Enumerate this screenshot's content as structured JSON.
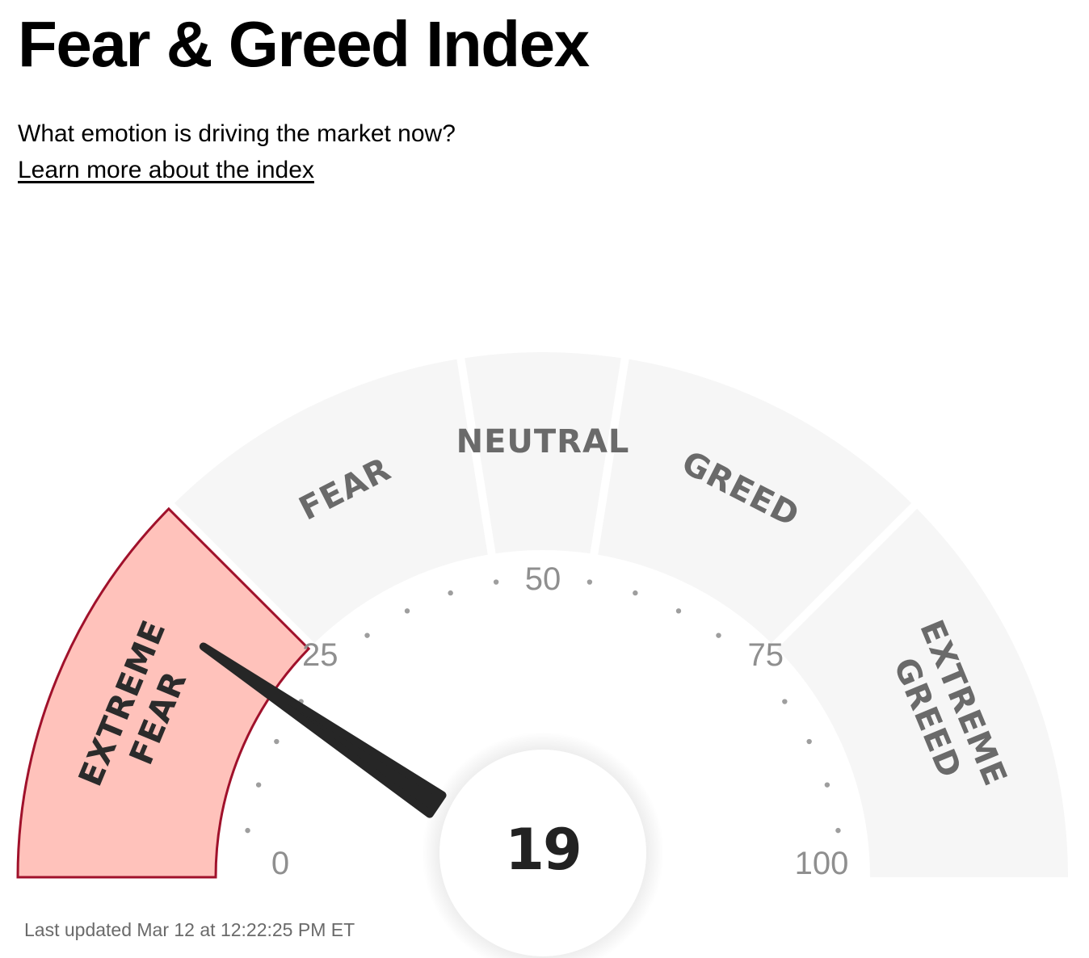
{
  "header": {
    "title": "Fear & Greed Index",
    "subtitle": "What emotion is driving the market now?",
    "learn_more_link": "Learn more about the index"
  },
  "chart_data": {
    "type": "gauge",
    "value": 19,
    "range": [
      0,
      100
    ],
    "segments": [
      {
        "name": "extreme-fear",
        "lines": [
          "EXTREME",
          "FEAR"
        ],
        "from": 0,
        "to": 25
      },
      {
        "name": "fear",
        "lines": [
          "FEAR"
        ],
        "from": 25,
        "to": 45
      },
      {
        "name": "neutral",
        "lines": [
          "NEUTRAL"
        ],
        "from": 45,
        "to": 55
      },
      {
        "name": "greed",
        "lines": [
          "GREED"
        ],
        "from": 55,
        "to": 75
      },
      {
        "name": "extreme-greed",
        "lines": [
          "EXTREME",
          "GREED"
        ],
        "from": 75,
        "to": 100
      }
    ],
    "active_segment": "extreme-fear",
    "tick_labels": [
      "0",
      "25",
      "50",
      "75",
      "100"
    ],
    "colors": {
      "inactive_fill": "#f6f6f6",
      "active_fill": "#ffc2bb",
      "active_stroke": "#a0112b",
      "needle": "#262626",
      "tick_dot": "#9e9e9e"
    }
  },
  "footer": {
    "last_updated": "Last updated Mar 12 at 12:22:25 PM ET"
  }
}
